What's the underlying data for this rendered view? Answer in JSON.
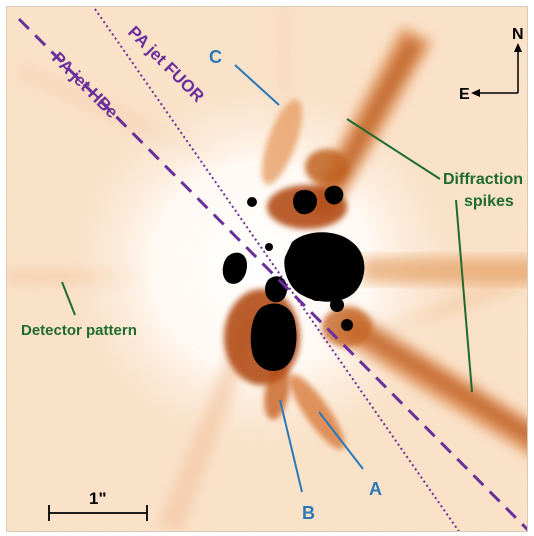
{
  "image": {
    "description_colors": {
      "background": "#fbe6d2",
      "halo": "#fff7f0",
      "emission_mid": "#e89a5a",
      "emission_dark": "#a04412",
      "core": "#000000"
    }
  },
  "annotations": {
    "jet_hbe": {
      "label": "PA jet HBe",
      "color": "#6a2f9a"
    },
    "jet_fuor": {
      "label": "PA jet FUOR",
      "color": "#6a2f9a"
    },
    "diffraction": {
      "label_line1": "Diffraction",
      "label_line2": "spikes",
      "color": "#1f6b2e"
    },
    "detector": {
      "label": "Detector pattern",
      "color": "#1f6b2e"
    },
    "features": [
      {
        "label": "A",
        "color": "#2a78b8"
      },
      {
        "label": "B",
        "color": "#2a78b8"
      },
      {
        "label": "C",
        "color": "#2a78b8"
      }
    ],
    "compass": {
      "north": "N",
      "east": "E"
    },
    "scalebar": {
      "label": "1\""
    }
  }
}
